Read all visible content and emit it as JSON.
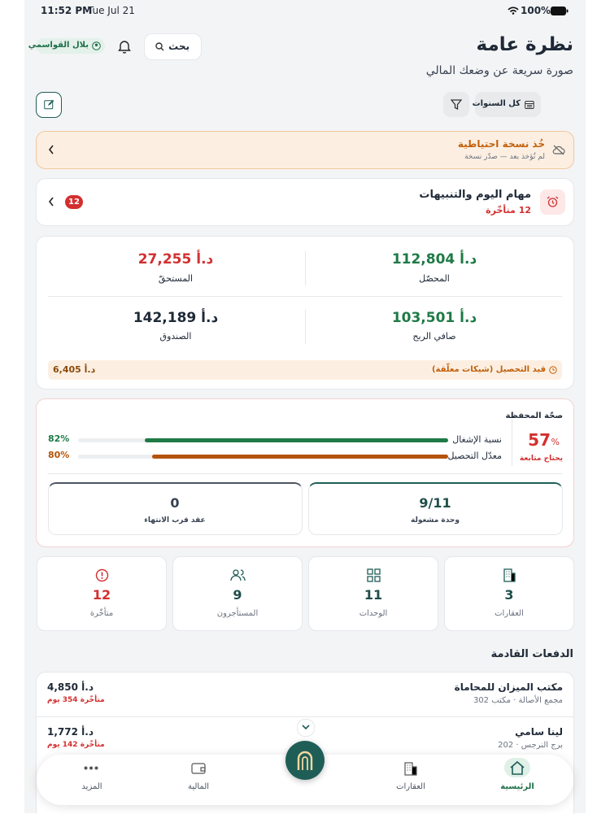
{
  "status_bar": {
    "time": "11:52 PM",
    "date": "Tue Jul 21",
    "battery": "100%"
  },
  "header": {
    "title": "نظرة عامة",
    "subtitle": "صورة سريعة عن وضعك المالي",
    "search": "بحث",
    "user": "بلال القواسمي"
  },
  "filters": {
    "years": "كل السنوات"
  },
  "backup": {
    "title": "خُذ نسخة احتياطية",
    "subtitle": "لم تُؤخذ بعد — صدّر نسخة"
  },
  "tasks": {
    "title": "مهام اليوم والتنبيهات",
    "overdue": "12 متأخّرة",
    "badge": "12"
  },
  "finance": {
    "collected": {
      "value": "112,804 د.أ",
      "label": "المحصّل"
    },
    "due": {
      "value": "27,255 د.أ",
      "label": "المستحقّ"
    },
    "net_profit": {
      "value": "103,501 د.أ",
      "label": "صافي الربح"
    },
    "fund": {
      "value": "142,189 د.أ",
      "label": "الصندوق"
    },
    "pending": {
      "label": "قيد التحصيل (شيكات معلّقة)",
      "value": "6,405 د.أ"
    }
  },
  "health": {
    "title": "صحّة المحفظة",
    "score": "57",
    "score_unit": "%",
    "status": "يحتاج متابعة",
    "bars": [
      {
        "label": "نسبة الإشغال",
        "value": 82,
        "value_label": "82%"
      },
      {
        "label": "معدّل التحصيل",
        "value": 80,
        "value_label": "80%"
      }
    ],
    "boxes": [
      {
        "value": "9/11",
        "label": "وحدة مشغولة"
      },
      {
        "value": "0",
        "label": "عقد قرب الانتهاء"
      }
    ]
  },
  "stats": [
    {
      "value": "3",
      "label": "العقارات"
    },
    {
      "value": "11",
      "label": "الوحدات"
    },
    {
      "value": "9",
      "label": "المستأجرون"
    },
    {
      "value": "12",
      "label": "متأخّرة"
    }
  ],
  "payments": {
    "title": "الدفعات القادمة",
    "rows": [
      {
        "name": "مكتب الميزان للمحاماة",
        "location": "مجمع الأصالة · مكتب 302",
        "amount": "4,850 د.أ",
        "status": "متأخّرة 354 يوم"
      },
      {
        "name": "لينا سامي",
        "location": "برج النرجس · 202",
        "amount": "1,772 د.أ",
        "status": "متأخّرة 142 يوم"
      }
    ]
  },
  "nav": {
    "items": [
      "الرئيسية",
      "العقارات",
      "المالية",
      "المزيد"
    ]
  }
}
